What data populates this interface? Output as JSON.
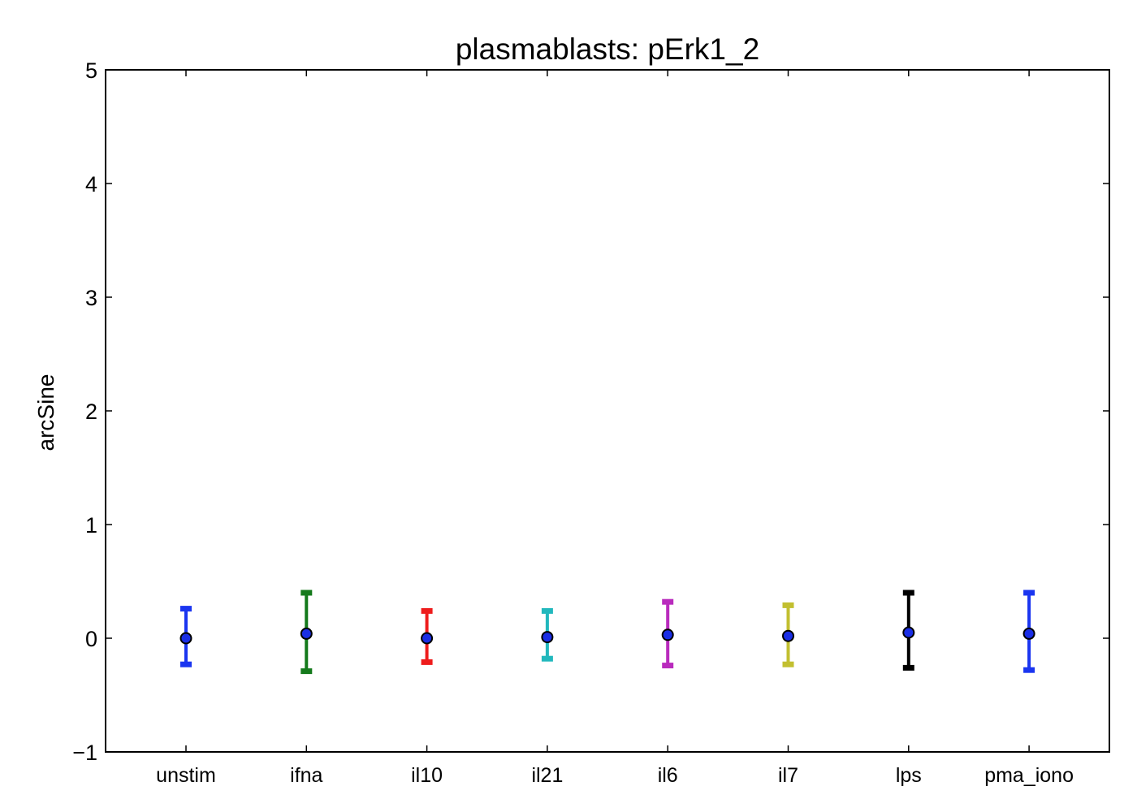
{
  "chart_data": {
    "type": "errorbar",
    "title": "plasmablasts: pErk1_2",
    "xlabel": "",
    "ylabel": "arcSine",
    "ylim": [
      -1,
      5
    ],
    "yticks": [
      -1,
      0,
      1,
      2,
      3,
      4,
      5
    ],
    "ytick_labels": [
      "−1",
      "0",
      "1",
      "2",
      "3",
      "4",
      "5"
    ],
    "grid": false,
    "categories": [
      "unstim",
      "ifna",
      "il10",
      "il21",
      "il6",
      "il7",
      "lps",
      "pma_iono"
    ],
    "values": [
      0.0,
      0.04,
      0.0,
      0.01,
      0.03,
      0.02,
      0.05,
      0.04
    ],
    "lower": [
      -0.23,
      -0.29,
      -0.21,
      -0.18,
      -0.24,
      -0.23,
      -0.26,
      -0.28
    ],
    "upper": [
      0.26,
      0.4,
      0.24,
      0.24,
      0.32,
      0.29,
      0.4,
      0.4
    ],
    "colors": [
      "#1a35f0",
      "#157a1c",
      "#ee1c1c",
      "#22b8bd",
      "#b92bbd",
      "#c2bf30",
      "#000000",
      "#1a35f0"
    ],
    "marker_color": "#1a2ee6"
  }
}
